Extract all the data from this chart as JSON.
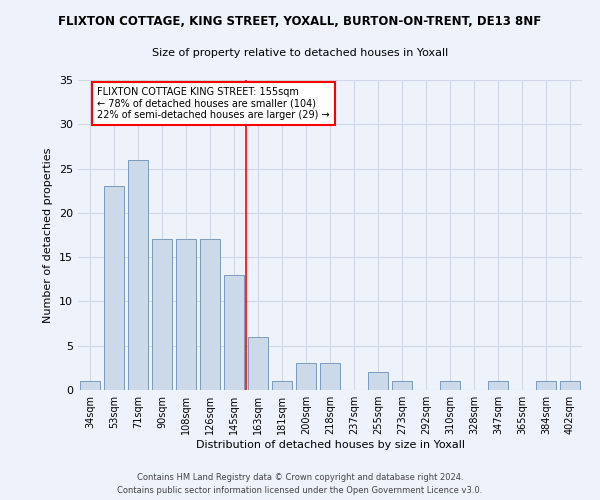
{
  "title": "FLIXTON COTTAGE, KING STREET, YOXALL, BURTON-ON-TRENT, DE13 8NF",
  "subtitle": "Size of property relative to detached houses in Yoxall",
  "xlabel": "Distribution of detached houses by size in Yoxall",
  "ylabel": "Number of detached properties",
  "categories": [
    "34sqm",
    "53sqm",
    "71sqm",
    "90sqm",
    "108sqm",
    "126sqm",
    "145sqm",
    "163sqm",
    "181sqm",
    "200sqm",
    "218sqm",
    "237sqm",
    "255sqm",
    "273sqm",
    "292sqm",
    "310sqm",
    "328sqm",
    "347sqm",
    "365sqm",
    "384sqm",
    "402sqm"
  ],
  "values": [
    1,
    23,
    26,
    17,
    17,
    17,
    13,
    6,
    1,
    3,
    3,
    0,
    2,
    1,
    0,
    1,
    0,
    1,
    0,
    1,
    1
  ],
  "bar_color": "#ccd9e8",
  "bar_edge_color": "#7a9bbf",
  "grid_color": "#d0d8e8",
  "background_color": "#eef2fb",
  "vline_color": "red",
  "vline_pos": 6.5,
  "annotation_text": "FLIXTON COTTAGE KING STREET: 155sqm\n← 78% of detached houses are smaller (104)\n22% of semi-detached houses are larger (29) →",
  "annotation_box_color": "white",
  "annotation_box_edge": "red",
  "ylim": [
    0,
    35
  ],
  "yticks": [
    0,
    5,
    10,
    15,
    20,
    25,
    30,
    35
  ],
  "footer_line1": "Contains HM Land Registry data © Crown copyright and database right 2024.",
  "footer_line2": "Contains public sector information licensed under the Open Government Licence v3.0."
}
